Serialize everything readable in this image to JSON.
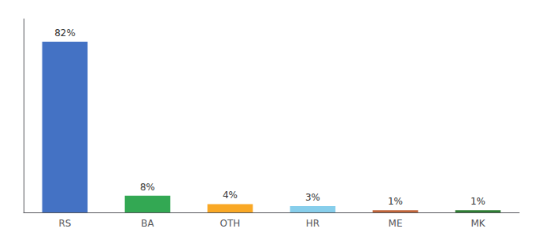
{
  "chart_data": {
    "type": "bar",
    "categories": [
      "RS",
      "BA",
      "OTH",
      "HR",
      "ME",
      "MK"
    ],
    "values": [
      82,
      8,
      4,
      3,
      1,
      1
    ],
    "value_labels": [
      "82%",
      "8%",
      "4%",
      "3%",
      "1%",
      "1%"
    ],
    "colors": [
      "#4472c4",
      "#33a853",
      "#f9a825",
      "#87ceeb",
      "#c0653a",
      "#2d7d32"
    ],
    "ylim": [
      0,
      93
    ],
    "grid": false,
    "data_labels": true,
    "tick_labels": "x"
  }
}
